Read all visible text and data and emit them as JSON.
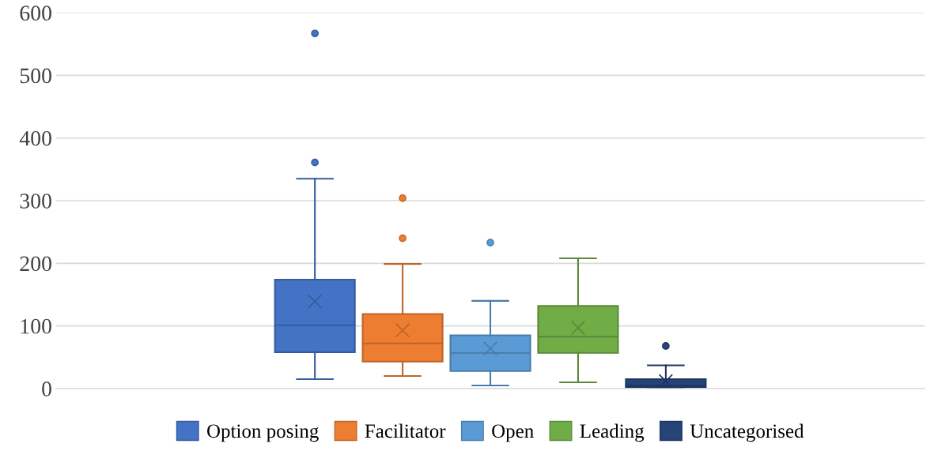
{
  "chart_data": {
    "type": "box",
    "categories": [
      null
    ],
    "series": [
      {
        "name": "Option posing",
        "color": "#4472c4",
        "boxes": [
          {
            "low": 15,
            "q1": 58,
            "median": 101,
            "q3": 174,
            "high": 335,
            "mean": 139,
            "outliers": [
              361,
              567
            ]
          }
        ]
      },
      {
        "name": "Facilitator",
        "color": "#ed7d31",
        "boxes": [
          {
            "low": 20,
            "q1": 43,
            "median": 72,
            "q3": 119,
            "high": 199,
            "mean": 93,
            "outliers": [
              240,
              304
            ]
          }
        ]
      },
      {
        "name": "Open",
        "color": "#5b9bd5",
        "boxes": [
          {
            "low": 5,
            "q1": 28,
            "median": 57,
            "q3": 85,
            "high": 140,
            "mean": 64,
            "outliers": [
              233
            ]
          }
        ]
      },
      {
        "name": "Leading",
        "color": "#70ad47",
        "boxes": [
          {
            "low": 10,
            "q1": 57,
            "median": 83,
            "q3": 132,
            "high": 208,
            "mean": 97
          }
        ]
      },
      {
        "name": "Uncategorised",
        "color": "#264478",
        "boxes": [
          {
            "low": 0,
            "q1": 2,
            "median": 5,
            "q3": 15,
            "high": 37,
            "mean": 12,
            "outliers": [
              68
            ]
          }
        ]
      }
    ],
    "ylim": [
      0,
      600
    ],
    "yticks": [
      0,
      100,
      200,
      300,
      400,
      500,
      600
    ],
    "grid": "y",
    "legend": "bottom"
  }
}
